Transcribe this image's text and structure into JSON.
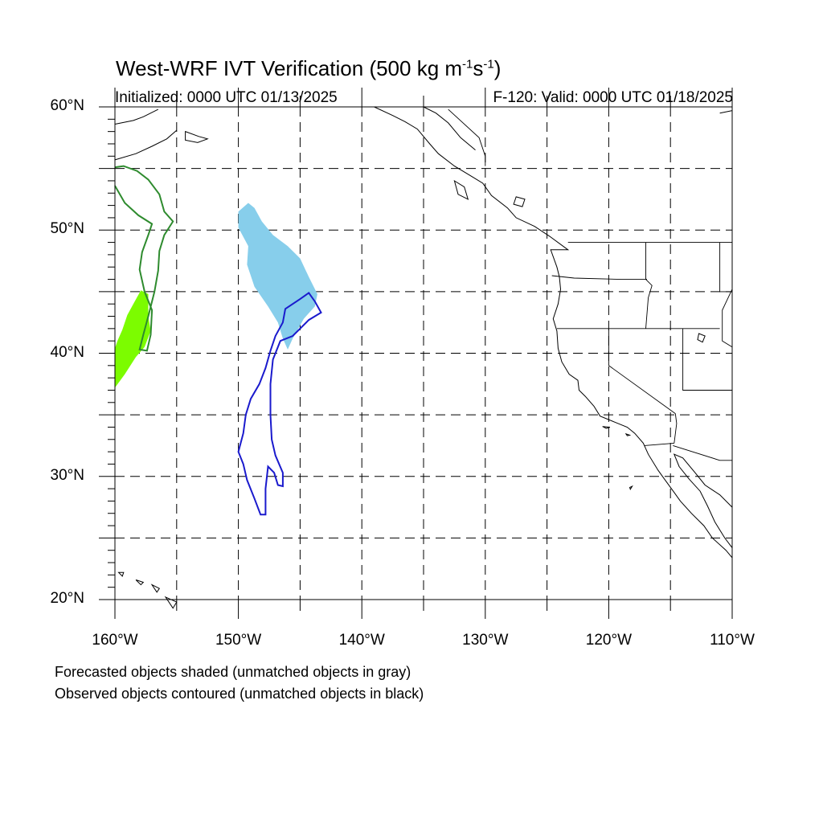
{
  "title": {
    "main": "West-WRF IVT Verification (500 kg m",
    "sup1": "-1",
    "mid": "s",
    "sup2": "-1",
    "close": ")"
  },
  "init_text": "Initialized: 0000 UTC 01/13/2025",
  "valid_text": "F-120: Valid: 0000 UTC 01/18/2025",
  "lat_labels": [
    "60°N",
    "50°N",
    "40°N",
    "30°N",
    "20°N"
  ],
  "lon_labels": [
    "160°W",
    "150°W",
    "140°W",
    "130°W",
    "120°W",
    "110°W"
  ],
  "captions": [
    "Forecasted objects shaded (unmatched objects in gray)",
    "Observed objects contoured (unmatched objects in black)"
  ],
  "map": {
    "lon_range": [
      -160,
      -110
    ],
    "lat_range": [
      20,
      60
    ],
    "grid_spacing_deg": 5,
    "colors": {
      "forecast_blue": "#87ceeb",
      "forecast_green": "#7cfc00",
      "observed_blue": "#1a1acd",
      "observed_green": "#2e8b2e",
      "coastline": "#000000"
    }
  }
}
